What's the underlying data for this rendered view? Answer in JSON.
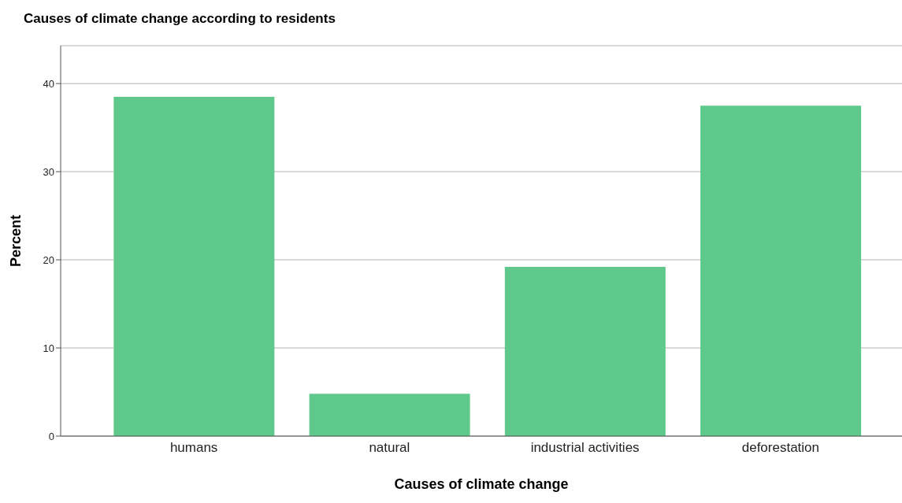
{
  "chart_data": {
    "type": "bar",
    "title": "Causes of climate change according to residents",
    "xlabel": "Causes of climate change",
    "ylabel": "Percent",
    "categories": [
      "humans",
      "natural",
      "industrial activities",
      "deforestation"
    ],
    "values": [
      38.5,
      4.8,
      19.2,
      37.5
    ],
    "color": "#5ec98a",
    "ylim": [
      0,
      44.3
    ],
    "yticks": [
      0,
      10,
      20,
      30,
      40
    ],
    "grid": "y"
  }
}
